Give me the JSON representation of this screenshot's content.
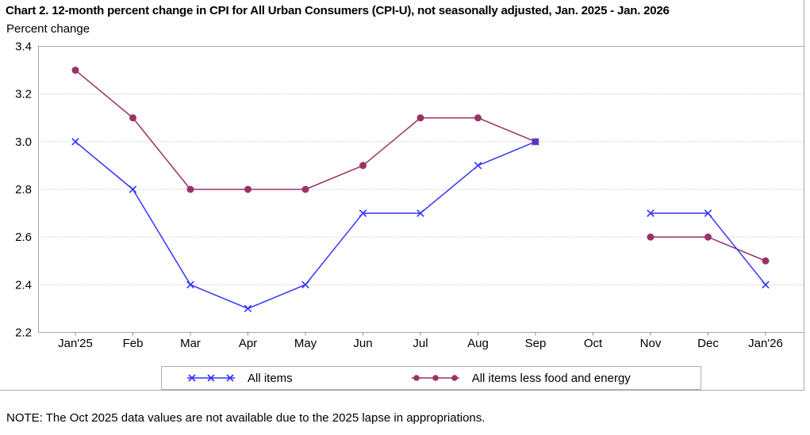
{
  "chart_data": {
    "type": "line",
    "title": "Chart 2. 12-month percent change in CPI for All Urban Consumers (CPI-U), not seasonally adjusted, Jan. 2025 - Jan. 2026",
    "ylabel": "Percent change",
    "note": "NOTE: The Oct 2025 data values are not available due to the 2025 lapse in appropriations.",
    "ylim": [
      2.2,
      3.4
    ],
    "ytick_step": 0.2,
    "ytick_labels": [
      "3.4",
      "3.2",
      "3.0",
      "2.8",
      "2.6",
      "2.4",
      "2.2"
    ],
    "grid": "horizontal-dotted",
    "legend_position": "bottom",
    "categories": [
      "Jan'25",
      "Feb",
      "Mar",
      "Apr",
      "May",
      "Jun",
      "Jul",
      "Aug",
      "Sep",
      "Oct",
      "Nov",
      "Dec",
      "Jan'26"
    ],
    "series": [
      {
        "name": "All items",
        "marker": "x",
        "color": "#3333ff",
        "values": [
          3.0,
          2.8,
          2.4,
          2.3,
          2.4,
          2.7,
          2.7,
          2.9,
          3.0,
          null,
          2.7,
          2.7,
          2.4
        ]
      },
      {
        "name": "All items less food and energy",
        "marker": "dot",
        "color": "#993366",
        "values": [
          3.3,
          3.1,
          2.8,
          2.8,
          2.8,
          2.9,
          3.1,
          3.1,
          3.0,
          null,
          2.6,
          2.6,
          2.5
        ]
      }
    ]
  },
  "colors": {
    "frame": "#a6a6a6",
    "gridline": "#b4b4b4",
    "tick": "#8c8c8c",
    "text": "#000000",
    "background": "#ffffff"
  }
}
